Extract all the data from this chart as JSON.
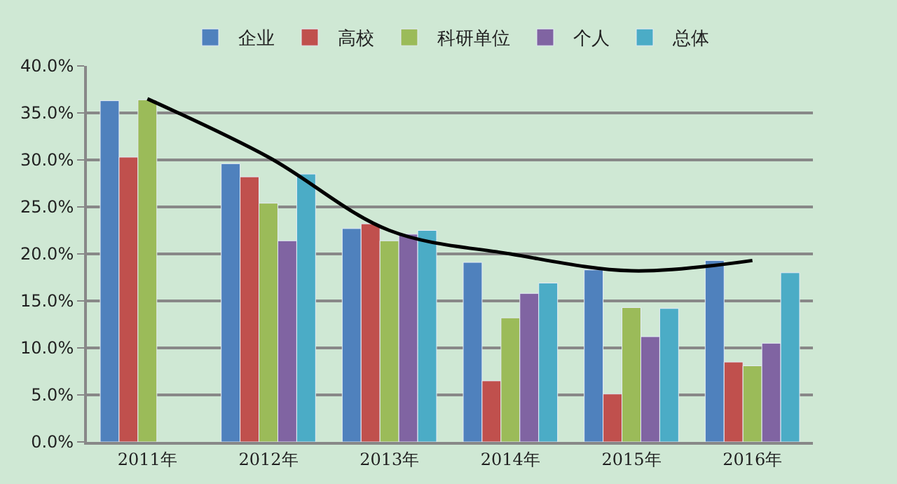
{
  "chart_data": {
    "type": "bar",
    "categories": [
      "2011年",
      "2012年",
      "2013年",
      "2014年",
      "2015年",
      "2016年"
    ],
    "series": [
      {
        "name": "企业",
        "color": "#4f81bd",
        "values": [
          36.3,
          29.6,
          22.7,
          19.1,
          18.3,
          19.3
        ]
      },
      {
        "name": "高校",
        "color": "#c0504d",
        "values": [
          30.3,
          28.2,
          23.2,
          6.5,
          5.1,
          8.5
        ]
      },
      {
        "name": "科研单位",
        "color": "#9bbb59",
        "values": [
          36.4,
          25.4,
          21.4,
          13.2,
          14.3,
          8.1
        ]
      },
      {
        "name": "个人",
        "color": "#8064a2",
        "values": [
          null,
          21.4,
          22.1,
          15.8,
          11.2,
          10.5
        ]
      },
      {
        "name": "总体",
        "color": "#4bacc6",
        "values": [
          null,
          28.5,
          22.5,
          16.9,
          14.2,
          18.0
        ]
      },
      {
        "type": "line",
        "color": "#000000",
        "marker": "none",
        "values": [
          36.5,
          30.3,
          22.5,
          20.0,
          18.2,
          19.3
        ]
      }
    ],
    "ylim": [
      0,
      40
    ],
    "yticks": [
      {
        "value": 0,
        "label": "0.0%"
      },
      {
        "value": 5,
        "label": "5.0%"
      },
      {
        "value": 10,
        "label": "10.0%"
      },
      {
        "value": 15,
        "label": "15.0%"
      },
      {
        "value": 20,
        "label": "20.0%"
      },
      {
        "value": 25,
        "label": "25.0%"
      },
      {
        "value": 30,
        "label": "30.0%"
      },
      {
        "value": 35,
        "label": "35.0%"
      },
      {
        "value": 40,
        "label": "40.0%"
      }
    ],
    "grid": "y",
    "legend": "top"
  }
}
